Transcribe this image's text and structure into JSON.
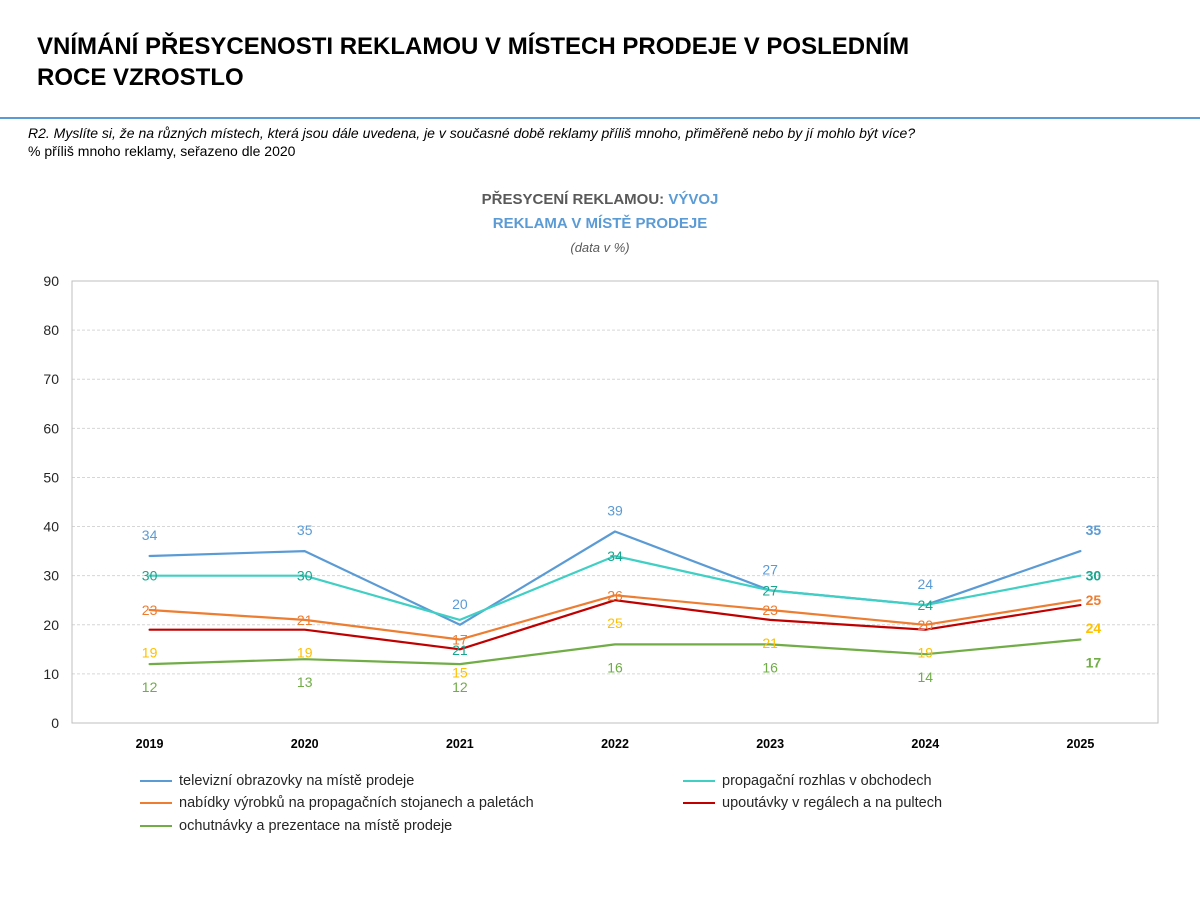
{
  "slide": {
    "title_lines": [
      "VNÍMÁNÍ PŘESYCENOSTI REKLAMOU V MÍSTECH PRODEJE V POSLEDNÍM",
      "ROCE VZROSTLO"
    ],
    "question": "R2. Myslíte si, že na různých místech, která jsou dále uvedena, je v současné době reklamy příliš mnoho, přiměřeně nebo by jí mohlo být více?",
    "note": "% příliš mnoho reklamy, seřazeno dle 2020"
  },
  "colors": {
    "accent": "#5B9BD5",
    "chart_title_gray": "#595959"
  },
  "chart_data": {
    "type": "line",
    "title_prefix": "PŘESYCENÍ REKLAMOU:",
    "title_highlight": "VÝVOJ",
    "subtitle": "REKLAMA V MÍSTĚ PRODEJE",
    "unit_note": "(data v %)",
    "categories": [
      "2019",
      "2020",
      "2021",
      "2022",
      "2023",
      "2024",
      "2025"
    ],
    "ylim": [
      0,
      90
    ],
    "yticks": [
      0,
      10,
      20,
      30,
      40,
      50,
      60,
      70,
      80,
      90
    ],
    "grid": true,
    "legend_position": "bottom",
    "series": [
      {
        "name": "televizní obrazovky na místě prodeje",
        "values": [
          34,
          35,
          20,
          39,
          27,
          24,
          35
        ],
        "color": "#5B9BD5",
        "label_color": "#5B9BD5"
      },
      {
        "name": "propagační rozhlas v obchodech",
        "values": [
          30,
          30,
          21,
          34,
          27,
          24,
          30
        ],
        "color": "#40CFC4",
        "label_color": "#19A58E"
      },
      {
        "name": "nabídky výrobků na propagačních stojanech a paletách",
        "values": [
          23,
          21,
          17,
          26,
          23,
          20,
          25
        ],
        "color": "#ED7D31",
        "label_color": "#ED7D31"
      },
      {
        "name": "upoutávky v regálech a na pultech",
        "values": [
          19,
          19,
          15,
          25,
          21,
          19,
          24
        ],
        "color": "#C00000",
        "label_color": "#FFC000"
      },
      {
        "name": "ochutnávky a prezentace na místě prodeje",
        "values": [
          12,
          13,
          12,
          16,
          16,
          14,
          17
        ],
        "color": "#70AD47",
        "label_color": "#70AD47"
      }
    ]
  }
}
